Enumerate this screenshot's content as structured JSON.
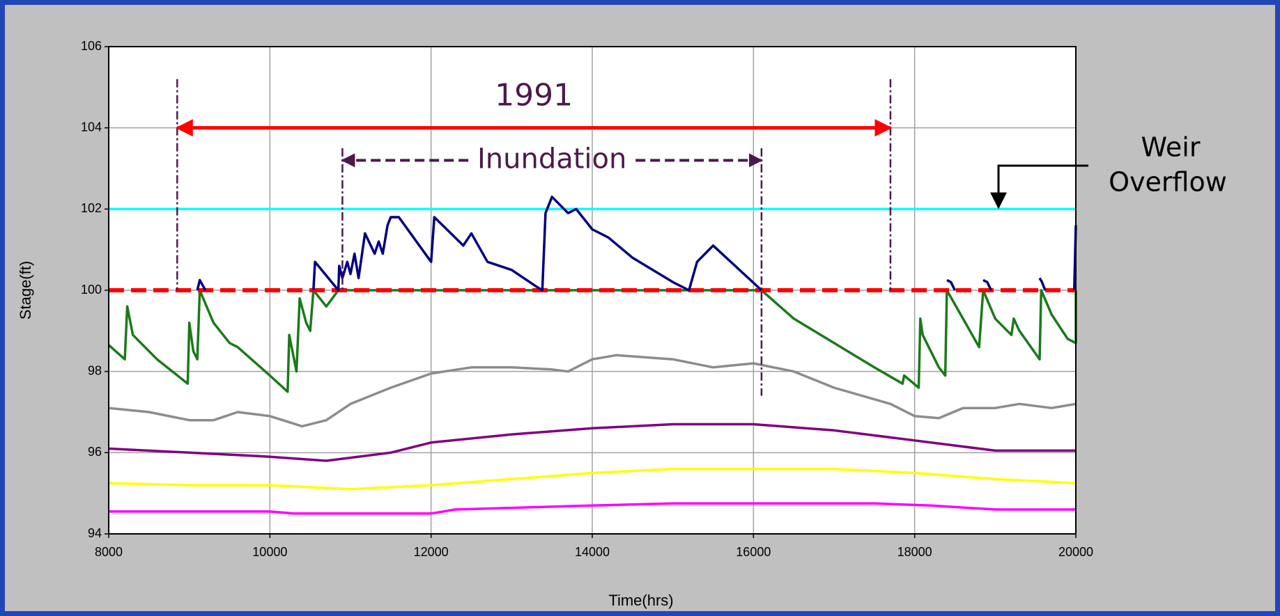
{
  "chart_data": {
    "type": "line",
    "xlabel": "Time(hrs)",
    "ylabel": "Stage(ft)",
    "xlim": [
      8000,
      20000
    ],
    "ylim": [
      94,
      106
    ],
    "xticks": [
      8000,
      10000,
      12000,
      14000,
      16000,
      18000,
      20000
    ],
    "yticks": [
      94,
      96,
      98,
      100,
      102,
      104,
      106
    ],
    "grid": true,
    "series": [
      {
        "color": "#ff00ff",
        "x": [
          8000,
          10000,
          10300,
          12000,
          12300,
          14000,
          15000,
          17500,
          18200,
          19000,
          20000
        ],
        "values": [
          94.55,
          94.55,
          94.5,
          94.5,
          94.6,
          94.7,
          94.75,
          94.75,
          94.7,
          94.6,
          94.6
        ]
      },
      {
        "color": "#ffff00",
        "x": [
          8000,
          9000,
          10000,
          11000,
          12000,
          13000,
          14000,
          15000,
          16000,
          17000,
          18000,
          19000,
          20000
        ],
        "values": [
          95.25,
          95.2,
          95.2,
          95.1,
          95.2,
          95.35,
          95.5,
          95.6,
          95.6,
          95.6,
          95.5,
          95.35,
          95.25
        ]
      },
      {
        "color": "#800080",
        "x": [
          8000,
          9000,
          10000,
          10700,
          11500,
          12000,
          13000,
          14000,
          15000,
          16000,
          17000,
          18000,
          19000,
          20000
        ],
        "values": [
          96.1,
          96.0,
          95.9,
          95.8,
          96.0,
          96.25,
          96.45,
          96.6,
          96.7,
          96.7,
          96.55,
          96.3,
          96.05,
          96.05
        ]
      },
      {
        "color": "#8c8c8c",
        "x": [
          8000,
          8500,
          9000,
          9300,
          9600,
          10000,
          10400,
          10700,
          11000,
          11500,
          12000,
          12500,
          13000,
          13500,
          13700,
          14000,
          14300,
          15000,
          15500,
          16000,
          16500,
          17000,
          17700,
          18000,
          18300,
          18600,
          19000,
          19300,
          19700,
          20000
        ],
        "values": [
          97.1,
          97.0,
          96.8,
          96.8,
          97.0,
          96.9,
          96.65,
          96.8,
          97.2,
          97.6,
          97.95,
          98.1,
          98.1,
          98.05,
          98.0,
          98.3,
          98.4,
          98.3,
          98.1,
          98.2,
          98.0,
          97.6,
          97.2,
          96.9,
          96.85,
          97.1,
          97.1,
          97.2,
          97.1,
          97.2
        ]
      },
      {
        "color": "#00ffff",
        "x": [
          8000,
          20000
        ],
        "values": [
          102,
          102
        ]
      },
      {
        "color": "#1a7a1a",
        "x": [
          8000,
          8200,
          8230,
          8300,
          8600,
          8980,
          9000,
          9050,
          9100,
          9130,
          9300,
          9500,
          9600,
          10000,
          10220,
          10240,
          10300,
          10330,
          10370,
          10450,
          10500,
          10540,
          10700,
          10850,
          16100,
          16500,
          17000,
          17500,
          17850,
          17870,
          18050,
          18070,
          18100,
          18300,
          18380,
          18400,
          18600,
          18800,
          18850,
          19000,
          19200,
          19230,
          19300,
          19550,
          19570,
          19700,
          19900,
          20000,
          20000
        ],
        "values": [
          98.65,
          98.3,
          99.6,
          98.9,
          98.3,
          97.7,
          99.2,
          98.5,
          98.3,
          100.0,
          99.2,
          98.7,
          98.6,
          97.9,
          97.5,
          98.9,
          98.3,
          98.0,
          99.8,
          99.2,
          99.0,
          100.0,
          99.6,
          100.0,
          100.0,
          99.3,
          98.7,
          98.1,
          97.7,
          97.9,
          97.6,
          99.3,
          98.9,
          98.1,
          97.9,
          100.0,
          99.3,
          98.6,
          100.0,
          99.3,
          98.9,
          99.3,
          99.0,
          98.3,
          100.0,
          99.4,
          98.8,
          98.7,
          100.0
        ]
      },
      {
        "color": "#ff0000",
        "dash": true,
        "x": [
          8000,
          20000
        ],
        "values": [
          100,
          100
        ]
      },
      {
        "color": "#000080",
        "x": [
          9100,
          9130,
          9200,
          null,
          10540,
          10560,
          10850,
          10860,
          10900,
          10960,
          11000,
          11050,
          11100,
          11180,
          11300,
          11350,
          11400,
          11460,
          11500,
          11600,
          12000,
          12040,
          12400,
          12500,
          12700,
          13000,
          13300,
          13380,
          13420,
          13500,
          13700,
          13800,
          14000,
          14200,
          14500,
          15000,
          15200,
          15300,
          15500,
          16100,
          null,
          18400,
          18450,
          18500,
          null,
          18850,
          18900,
          18950,
          null,
          19550,
          19580,
          19620,
          null,
          19980,
          20000
        ],
        "values": [
          100.0,
          100.25,
          100.0,
          null,
          100.0,
          100.7,
          100.0,
          100.6,
          100.3,
          100.7,
          100.4,
          100.9,
          100.3,
          101.4,
          100.9,
          101.2,
          100.9,
          101.6,
          101.8,
          101.8,
          100.7,
          101.8,
          101.1,
          101.4,
          100.7,
          100.5,
          100.1,
          100.0,
          101.9,
          102.3,
          101.9,
          102.0,
          101.5,
          101.3,
          100.8,
          100.2,
          100.0,
          100.7,
          101.1,
          100.0,
          null,
          100.25,
          100.2,
          100.0,
          null,
          100.25,
          100.2,
          100.0,
          null,
          100.3,
          100.2,
          100.0,
          null,
          100.0,
          101.6
        ]
      }
    ],
    "annotations": [
      {
        "text": "1991",
        "color": "#ff0000",
        "x": [
          8850,
          17700
        ],
        "y": 104,
        "vlines": [
          [
            105.2,
            100
          ],
          [
            105.2,
            100
          ]
        ]
      },
      {
        "text": "Inundation",
        "color": "#4b1a4b",
        "x": [
          10900,
          16100
        ],
        "y": 103.2,
        "vlines": [
          [
            103.5,
            100
          ],
          [
            103.5,
            97.4
          ]
        ]
      }
    ],
    "callout": [
      "Weir",
      "Overflow"
    ]
  }
}
